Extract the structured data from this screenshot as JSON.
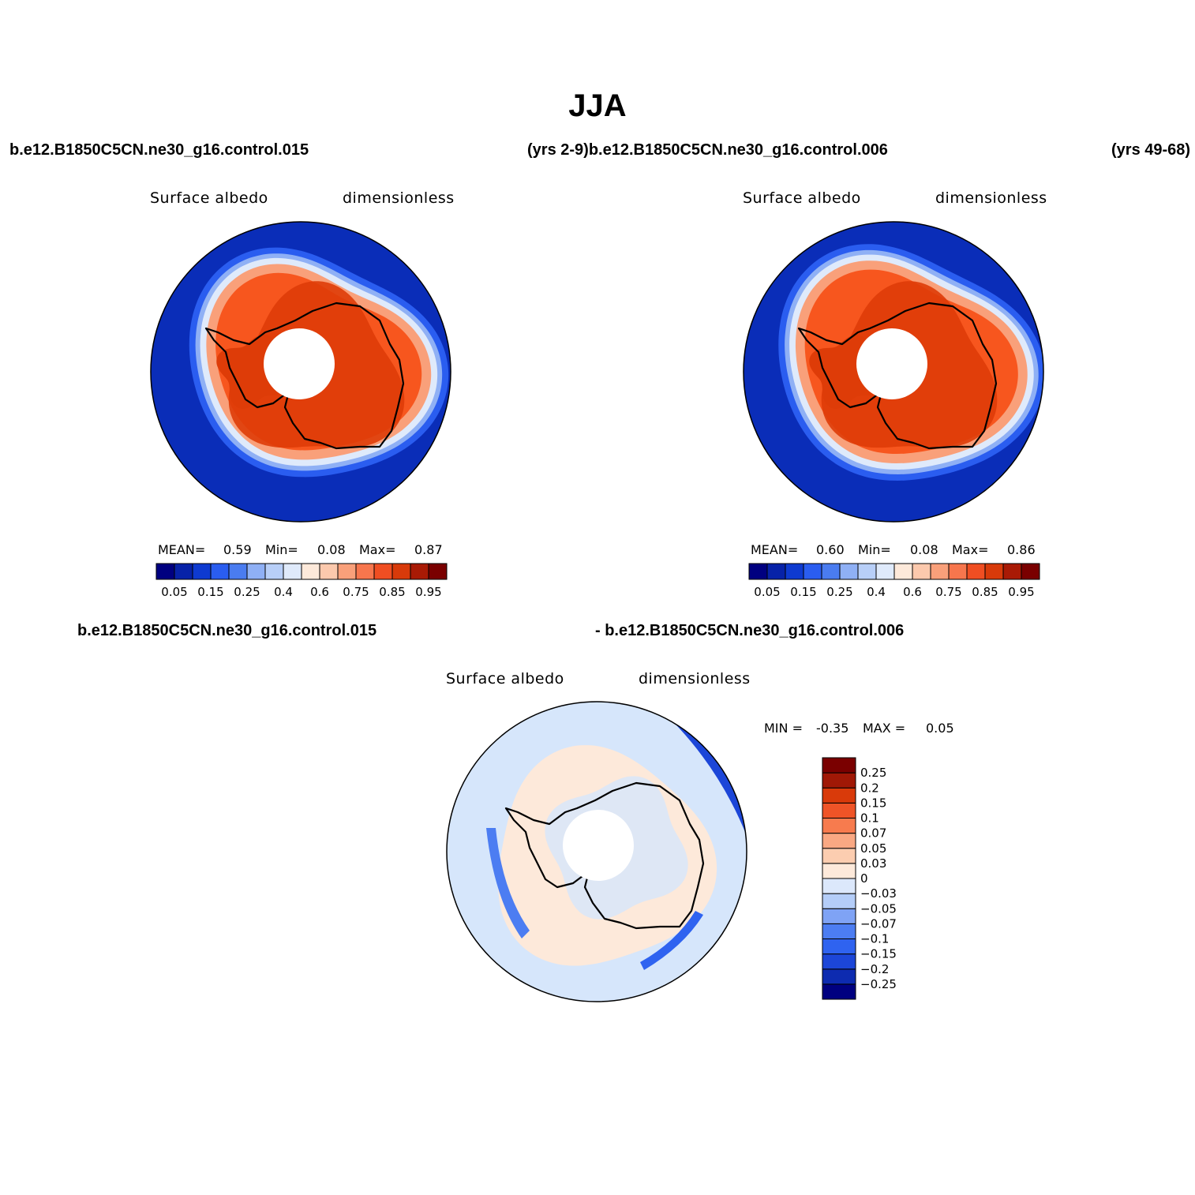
{
  "figure": {
    "title": "JJA",
    "top_left_header": "b.e12.B1850C5CN.ne30_g16.control.015",
    "top_center_header": "(yrs 2-9)b.e12.B1850C5CN.ne30_g16.control.006",
    "top_right_header": "(yrs 49-68)",
    "bottom_left_header": "b.e12.B1850C5CN.ne30_g16.control.015",
    "bottom_right_header": "- b.e12.B1850C5CN.ne30_g16.control.006"
  },
  "panels": [
    {
      "id": "panel-1",
      "variable_label": "Surface albedo",
      "units_label": "dimensionless",
      "mean_label": "MEAN=",
      "mean_value": "0.59",
      "min_label": "Min=",
      "min_value": "0.08",
      "max_label": "Max=",
      "max_value": "0.87"
    },
    {
      "id": "panel-2",
      "variable_label": "Surface albedo",
      "units_label": "dimensionless",
      "mean_label": "MEAN=",
      "mean_value": "0.60",
      "min_label": "Min=",
      "min_value": "0.08",
      "max_label": "Max=",
      "max_value": "0.86"
    },
    {
      "id": "panel-diff",
      "variable_label": "Surface albedo",
      "units_label": "dimensionless",
      "min_label": "MIN =",
      "min_value": "-0.35",
      "max_label": "MAX =",
      "max_value": "0.05"
    }
  ],
  "colorbar_top": {
    "colors": [
      "#000080",
      "#0722a8",
      "#0e3ad0",
      "#2a5df0",
      "#4a7cf0",
      "#8fb0f5",
      "#b8cff8",
      "#dfeafb",
      "#fde9da",
      "#fcc9ad",
      "#f9a07a",
      "#f7764d",
      "#f04e22",
      "#d83a0a",
      "#a91a05",
      "#7a0000"
    ],
    "tick_labels": [
      "0.05",
      "0.15",
      "0.25",
      "0.4",
      "0.6",
      "0.75",
      "0.85",
      "0.95"
    ]
  },
  "colorbar_diff": {
    "colors": [
      "#000080",
      "#0d2bb0",
      "#1c46d8",
      "#2f63f0",
      "#4c7df2",
      "#7fa3f5",
      "#b4cdf8",
      "#dce8fb",
      "#fde9da",
      "#fccdb0",
      "#f9a883",
      "#f77b4e",
      "#ef5427",
      "#d93a0a",
      "#a01806",
      "#7a0000"
    ],
    "tick_labels": [
      "0.25",
      "0.2",
      "0.15",
      "0.1",
      "0.07",
      "0.05",
      "0.03",
      "0",
      "-0.03",
      "-0.05",
      "-0.07",
      "-0.1",
      "-0.15",
      "-0.2",
      "-0.25"
    ]
  },
  "map_colors": {
    "ocean_deep": "#0a2db8",
    "ocean_mid": "#2a5df0",
    "ocean_light": "#8fb0f5",
    "ice_edge": "#dfeafb",
    "ice_light": "#f9a07a",
    "ice_main": "#f7561e",
    "ice_dark": "#de3c08",
    "pole_hole": "#ffffff",
    "diff_pos": "#fde9da",
    "diff_neg": "#d6e6fb",
    "diff_strong_neg": "#1c46d8"
  }
}
